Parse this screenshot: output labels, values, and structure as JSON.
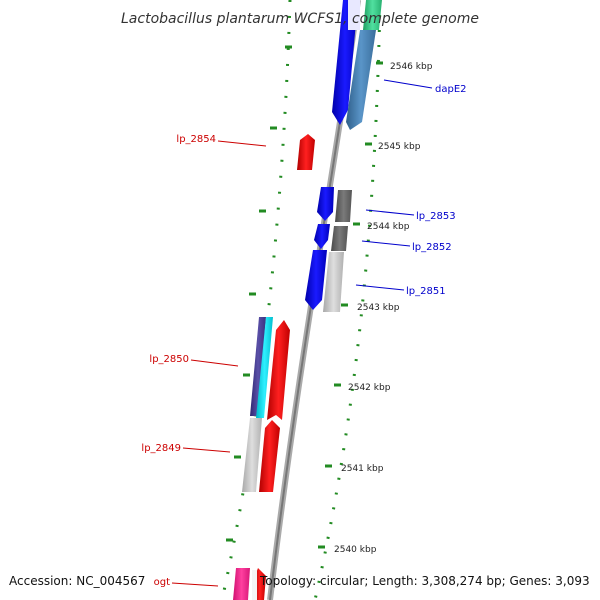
{
  "title": "Lactobacillus plantarum WCFS1, complete genome",
  "accession_text": "Accession: NC_004567",
  "topology_text": "Topology: circular; Length: 3,308,274 bp; Genes: 3,093",
  "colors": {
    "backbone": "#888888",
    "dots": "#228B22",
    "forward_label": "#0000CC",
    "reverse_label": "#CC0000",
    "forward_gene": "#0000EE",
    "reverse_gene": "#EE0000",
    "steelblue_gene": "#4682B4",
    "cyan_gene": "#00DDEE",
    "darkslate_gene": "#483D8B",
    "dark_gray_gene": "#666666",
    "light_gray_gene": "#C0C0C0",
    "pink_gene": "#FF1493",
    "seagreen_gene": "#3CB371"
  },
  "ticks": [
    "2546 kbp",
    "2545 kbp",
    "2544 kbp",
    "2543 kbp",
    "2542 kbp",
    "2541 kbp",
    "2540 kbp"
  ],
  "labels": {
    "dapE2": "dapE2",
    "lp_2853": "lp_2853",
    "lp_2852": "lp_2852",
    "lp_2851": "lp_2851",
    "lp_2854": "lp_2854",
    "lp_2850": "lp_2850",
    "lp_2849": "lp_2849",
    "ogt": "ogt"
  }
}
